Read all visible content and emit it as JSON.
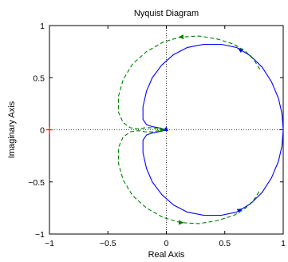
{
  "chart_data": {
    "type": "line",
    "title": "Nyquist Diagram",
    "xlabel": "Real Axis",
    "ylabel": "Imaginary Axis",
    "xlim": [
      -1,
      1
    ],
    "ylim": [
      -1,
      1
    ],
    "xticks": [
      -1,
      -0.5,
      0,
      0.5,
      1
    ],
    "xtick_labels": [
      "−1",
      "−0.5",
      "0",
      "0.5",
      "1"
    ],
    "yticks": [
      -1,
      -0.5,
      0,
      0.5,
      1
    ],
    "ytick_labels": [
      "−1",
      "−0.5",
      "0",
      "0.5",
      "1"
    ],
    "grid": false,
    "legend": "none",
    "series": [
      {
        "color": "#0000ff",
        "style": "solid",
        "x": [
          1.0,
          0.99,
          0.96,
          0.9,
          0.82,
          0.72,
          0.6,
          0.47,
          0.32,
          0.18,
          0.06,
          -0.04,
          -0.12,
          -0.17,
          -0.2,
          -0.2,
          -0.17,
          -0.12,
          -0.07,
          -0.03,
          -0.01,
          -0.03,
          -0.07,
          -0.12,
          -0.17,
          -0.2,
          -0.2,
          -0.17,
          -0.12,
          -0.04,
          0.06,
          0.18,
          0.32,
          0.47,
          0.6,
          0.72,
          0.82,
          0.9,
          0.96,
          0.99,
          1.0
        ],
        "y": [
          0.0,
          0.15,
          0.3,
          0.46,
          0.6,
          0.71,
          0.79,
          0.82,
          0.82,
          0.79,
          0.72,
          0.62,
          0.5,
          0.37,
          0.22,
          0.1,
          0.05,
          0.03,
          0.02,
          0.01,
          0.0,
          -0.01,
          -0.02,
          -0.03,
          -0.05,
          -0.1,
          -0.22,
          -0.37,
          -0.5,
          -0.62,
          -0.72,
          -0.79,
          -0.82,
          -0.82,
          -0.79,
          -0.71,
          -0.6,
          -0.46,
          -0.3,
          -0.15,
          0.0
        ]
      },
      {
        "color": "#008000",
        "style": "dashed",
        "x": [
          0.8,
          0.75,
          0.68,
          0.58,
          0.44,
          0.28,
          0.12,
          -0.03,
          -0.17,
          -0.29,
          -0.37,
          -0.41,
          -0.41,
          -0.37,
          -0.31,
          -0.25,
          -0.23,
          -0.18,
          -0.12,
          -0.07,
          -0.04,
          -0.03,
          -0.04,
          -0.07,
          -0.12,
          -0.18,
          -0.23,
          -0.25,
          -0.31,
          -0.37,
          -0.41,
          -0.41,
          -0.37,
          -0.29,
          -0.17,
          -0.03,
          0.12,
          0.28,
          0.44,
          0.58,
          0.68,
          0.75,
          0.8
        ],
        "y": [
          0.58,
          0.67,
          0.75,
          0.82,
          0.87,
          0.9,
          0.89,
          0.84,
          0.75,
          0.63,
          0.48,
          0.32,
          0.17,
          0.07,
          0.02,
          0.01,
          0.01,
          0.02,
          0.02,
          0.01,
          0.0,
          0.0,
          0.0,
          -0.01,
          -0.02,
          -0.02,
          -0.01,
          -0.01,
          -0.02,
          -0.07,
          -0.17,
          -0.32,
          -0.48,
          -0.63,
          -0.75,
          -0.84,
          -0.89,
          -0.9,
          -0.87,
          -0.82,
          -0.75,
          -0.67,
          -0.58
        ]
      }
    ],
    "markers": [
      {
        "x": -1,
        "y": 0,
        "symbol": "+",
        "color": "#ff0000"
      }
    ]
  }
}
